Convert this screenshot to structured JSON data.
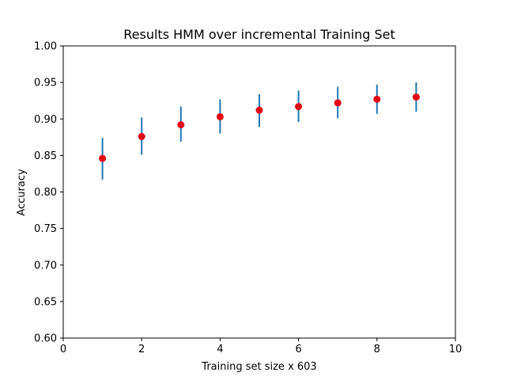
{
  "chart_data": {
    "type": "scatter",
    "title": "Results HMM over incremental Training Set",
    "xlabel": "Training set size x 603",
    "ylabel": "Accuracy",
    "xlim": [
      0,
      10
    ],
    "ylim": [
      0.6,
      1.0
    ],
    "xticks": [
      "0",
      "2",
      "4",
      "6",
      "8",
      "10"
    ],
    "yticks": [
      "0.60",
      "0.65",
      "0.70",
      "0.75",
      "0.80",
      "0.85",
      "0.90",
      "0.95",
      "1.00"
    ],
    "grid": false,
    "x": [
      1,
      2,
      3,
      4,
      5,
      6,
      7,
      8,
      9
    ],
    "y": [
      0.846,
      0.876,
      0.892,
      0.903,
      0.912,
      0.917,
      0.922,
      0.927,
      0.93
    ],
    "err_low": [
      0.817,
      0.851,
      0.869,
      0.88,
      0.889,
      0.896,
      0.901,
      0.907,
      0.91
    ],
    "err_high": [
      0.874,
      0.902,
      0.917,
      0.927,
      0.934,
      0.939,
      0.944,
      0.947,
      0.95
    ],
    "marker_color": "#e30613",
    "errorbar_color": "#1f77b4"
  }
}
